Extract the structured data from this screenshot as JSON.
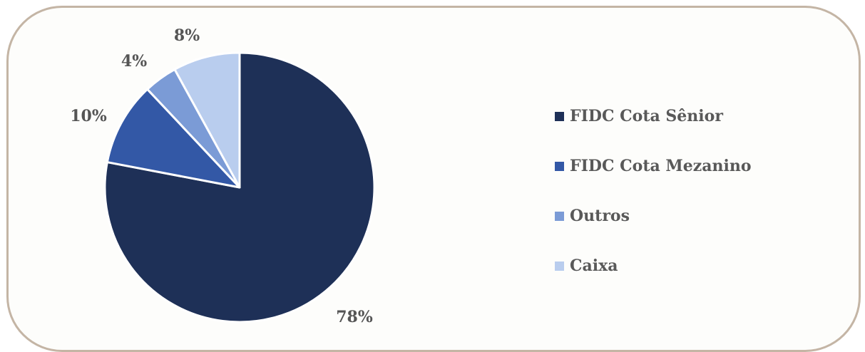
{
  "title": "",
  "chart_data": {
    "type": "pie",
    "title": "",
    "slices": [
      {
        "name": "FIDC Cota Sênior",
        "value": 78,
        "label": "78%",
        "color": "#1e3057"
      },
      {
        "name": "FIDC Cota Mezanino",
        "value": 10,
        "label": "10%",
        "color": "#3358a6"
      },
      {
        "name": "Outros",
        "value": 4,
        "label": "4%",
        "color": "#7b9bd6"
      },
      {
        "name": "Caixa",
        "value": 8,
        "label": "8%",
        "color": "#b9cdee"
      }
    ],
    "legend_position": "right"
  }
}
